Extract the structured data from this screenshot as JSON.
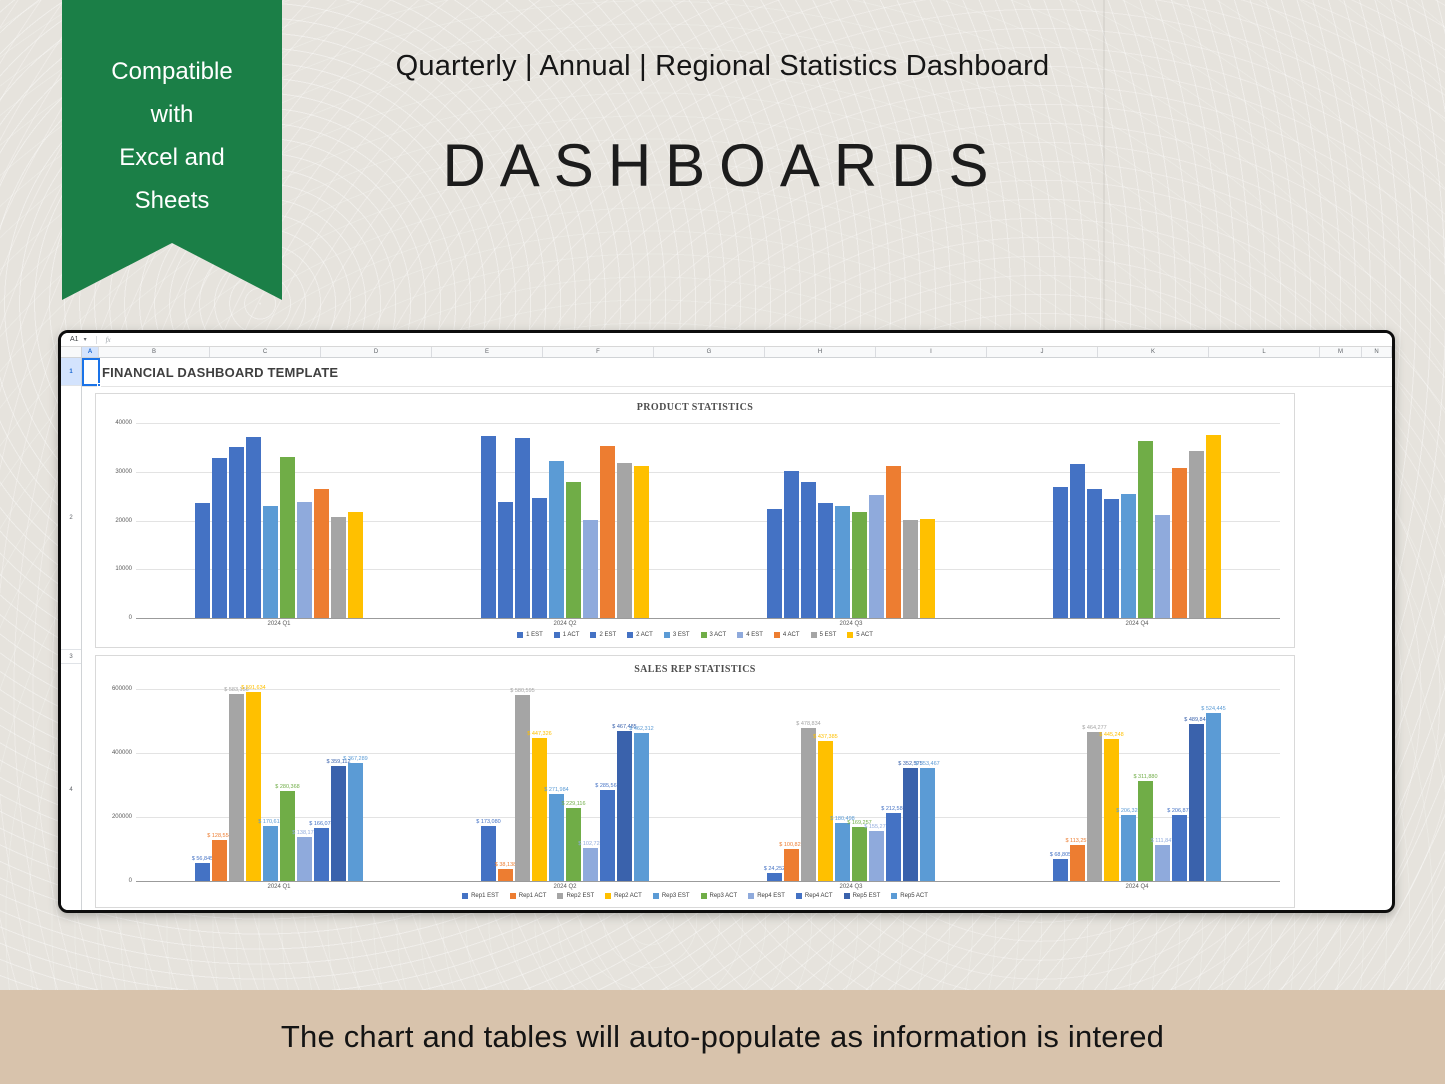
{
  "ribbon": {
    "lines": [
      "Compatible",
      "with",
      "Excel and",
      "Sheets"
    ],
    "color": "#1b7f47"
  },
  "header": {
    "subtitle": "Quarterly | Annual | Regional Statistics Dashboard",
    "title": "DASHBOARDS"
  },
  "spreadsheet": {
    "name_box": "A1",
    "caret_icon": "▾",
    "fx_label": "fx",
    "columns": [
      "A",
      "B",
      "C",
      "D",
      "E",
      "F",
      "G",
      "H",
      "I",
      "J",
      "K",
      "L",
      "M",
      "N"
    ],
    "rows": [
      "1",
      "2",
      "3",
      "4"
    ],
    "title_cell_text": "FINANCIAL DASHBOARD TEMPLATE"
  },
  "chart_data": [
    {
      "type": "bar",
      "title": "PRODUCT STATISTICS",
      "categories": [
        "2024 Q1",
        "2024 Q2",
        "2024 Q3",
        "2024 Q4"
      ],
      "series": [
        {
          "name": "1 EST",
          "color": "#4472C4",
          "values": [
            23500,
            37300,
            22400,
            26900
          ]
        },
        {
          "name": "1 ACT",
          "color": "#4472C4",
          "values": [
            32900,
            23700,
            30100,
            31600
          ]
        },
        {
          "name": "2 EST",
          "color": "#4472C4",
          "values": [
            35100,
            36900,
            27800,
            26400
          ]
        },
        {
          "name": "2 ACT",
          "color": "#4472C4",
          "values": [
            37200,
            24700,
            23600,
            24500
          ]
        },
        {
          "name": "3 EST",
          "color": "#5B9BD5",
          "values": [
            23000,
            32200,
            22900,
            25500
          ]
        },
        {
          "name": "3 ACT",
          "color": "#70AD47",
          "values": [
            33000,
            28000,
            21700,
            36400
          ]
        },
        {
          "name": "4 EST",
          "color": "#8FAADC",
          "values": [
            23700,
            20200,
            25200,
            21200
          ]
        },
        {
          "name": "4 ACT",
          "color": "#ED7D31",
          "values": [
            26400,
            35300,
            31100,
            30800
          ]
        },
        {
          "name": "5 EST",
          "color": "#A5A5A5",
          "values": [
            20700,
            31700,
            20200,
            34200
          ]
        },
        {
          "name": "5 ACT",
          "color": "#FFC000",
          "values": [
            21700,
            31200,
            20300,
            37500
          ]
        }
      ],
      "ylim": [
        0,
        40000
      ],
      "yticks": [
        0,
        10000,
        20000,
        30000,
        40000
      ],
      "grid": true,
      "legend_position": "bottom",
      "data_labels": false,
      "xlabel": "",
      "ylabel": ""
    },
    {
      "type": "bar",
      "title": "SALES REP STATISTICS",
      "categories": [
        "2024 Q1",
        "2024 Q2",
        "2024 Q3",
        "2024 Q4"
      ],
      "series": [
        {
          "name": "Rep1 EST",
          "color": "#4472C4",
          "values": [
            56845,
            173080,
            24252,
            68805
          ]
        },
        {
          "name": "Rep1 ACT",
          "color": "#ED7D31",
          "values": [
            128554,
            38138,
            100822,
            113257
          ]
        },
        {
          "name": "Rep2 EST",
          "color": "#A5A5A5",
          "values": [
            583156,
            580595,
            478834,
            464277
          ]
        },
        {
          "name": "Rep2 ACT",
          "color": "#FFC000",
          "values": [
            591634,
            447326,
            437385,
            445248
          ]
        },
        {
          "name": "Rep3 EST",
          "color": "#5B9BD5",
          "values": [
            170613,
            271984,
            180498,
            206328
          ]
        },
        {
          "name": "Rep3 ACT",
          "color": "#70AD47",
          "values": [
            280368,
            229116,
            169257,
            311880
          ]
        },
        {
          "name": "Rep4 EST",
          "color": "#8FAADC",
          "values": [
            138171,
            102723,
            155277,
            111847
          ]
        },
        {
          "name": "Rep4 ACT",
          "color": "#4472C4",
          "values": [
            166078,
            285567,
            212586,
            206875
          ]
        },
        {
          "name": "Rep5 EST",
          "color": "#3A62AC",
          "values": [
            359112,
            467485,
            352575,
            489845
          ]
        },
        {
          "name": "Rep5 ACT",
          "color": "#5B9BD5",
          "values": [
            367289,
            462312,
            353467,
            524445
          ]
        }
      ],
      "ylim": [
        0,
        600000
      ],
      "yticks": [
        0,
        200000,
        400000,
        600000
      ],
      "grid": true,
      "legend_position": "bottom",
      "data_labels": true,
      "label_prefix": "$ ",
      "xlabel": "",
      "ylabel": ""
    }
  ],
  "footer": {
    "text": "The chart and tables will auto-populate as information is intered"
  }
}
